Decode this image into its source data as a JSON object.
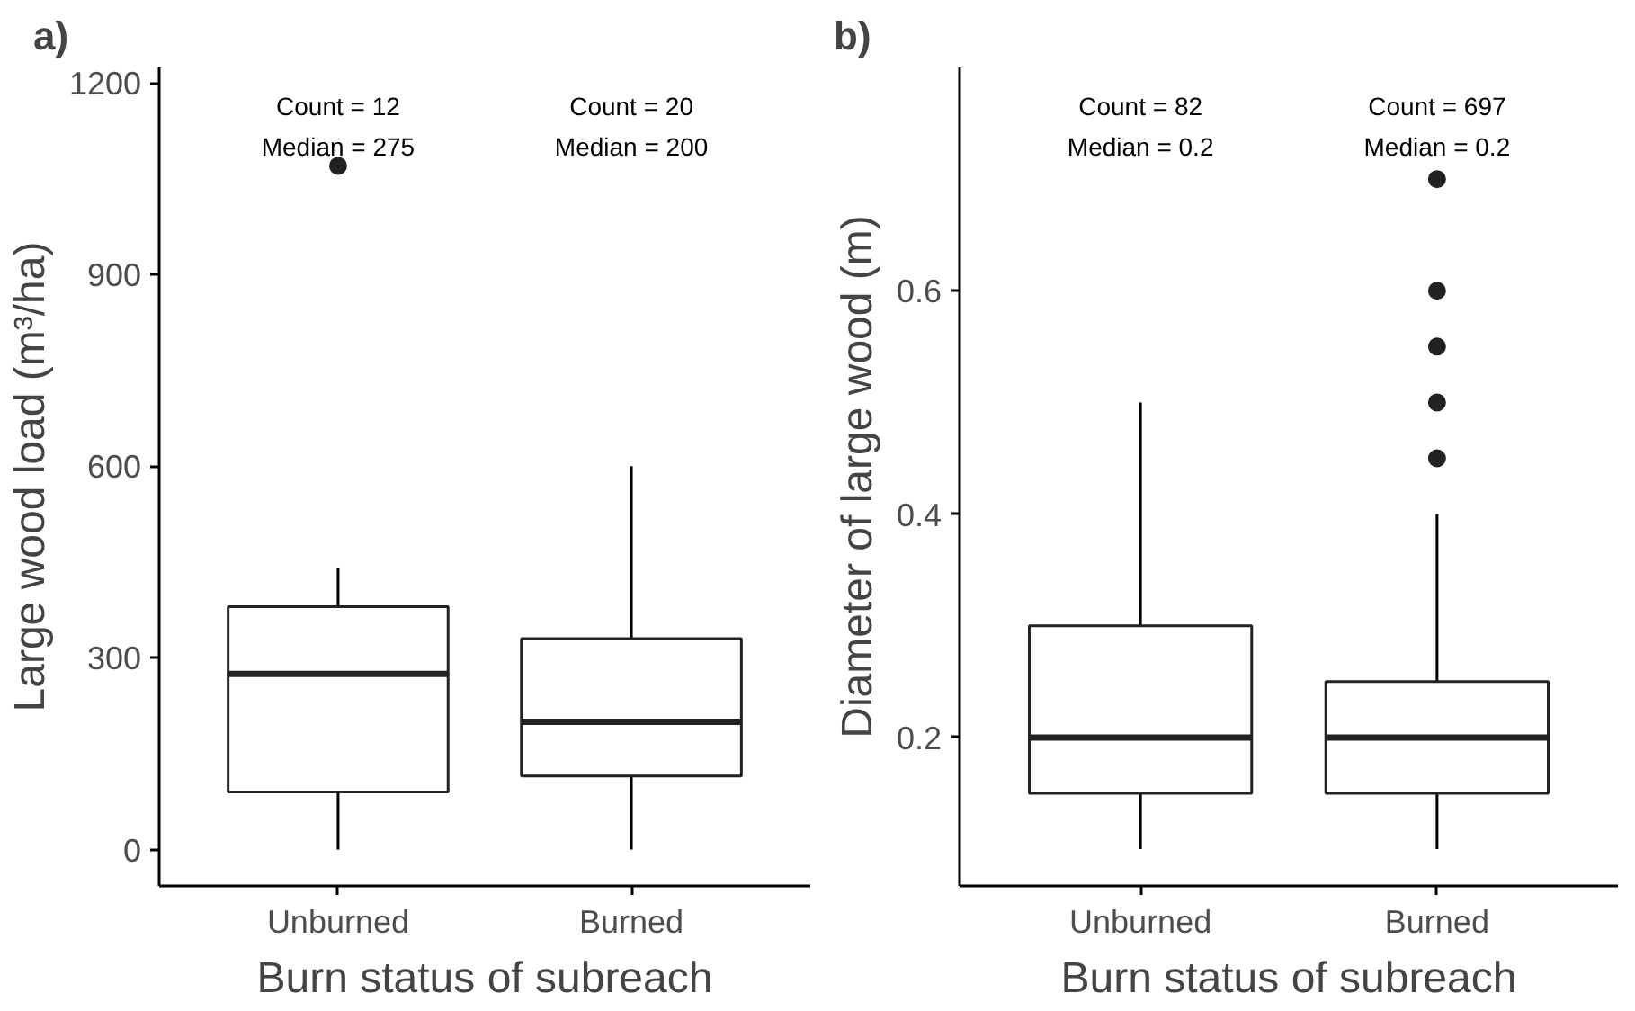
{
  "chart_data": [
    {
      "type": "box",
      "title": "a)",
      "xlabel": "Burn status of subreach",
      "ylabel": "Large wood load (m³/ha)",
      "categories": [
        "Unburned",
        "Burned"
      ],
      "boxes": [
        {
          "low": 0,
          "q1": 90,
          "median": 275,
          "q3": 380,
          "high": 440,
          "outliers": [
            1070
          ]
        },
        {
          "low": 0,
          "q1": 115,
          "median": 200,
          "q3": 330,
          "high": 600
        }
      ],
      "ylim": [
        -57,
        1224
      ],
      "yticks": [
        0,
        300,
        600,
        900,
        1200
      ],
      "grid": false,
      "annotations": [
        "Count = 12",
        "Median = 275",
        "Count = 20",
        "Median = 200"
      ]
    },
    {
      "type": "box",
      "title": "b)",
      "xlabel": "Burn status of subreach",
      "ylabel": "Diameter of large wood (m)",
      "categories": [
        "Unburned",
        "Burned"
      ],
      "boxes": [
        {
          "low": 0.1,
          "q1": 0.15,
          "median": 0.2,
          "q3": 0.3,
          "high": 0.5
        },
        {
          "low": 0.1,
          "q1": 0.15,
          "median": 0.2,
          "q3": 0.25,
          "high": 0.4,
          "outliers": [
            0.7,
            0.6,
            0.55,
            0.5,
            0.45
          ]
        }
      ],
      "ylim": [
        0.067,
        0.8
      ],
      "yticks": [
        0.2,
        0.4,
        0.6
      ],
      "grid": false,
      "annotations": [
        "Count = 82",
        "Median = 0.2",
        "Count = 697",
        "Median = 0.2"
      ]
    }
  ]
}
